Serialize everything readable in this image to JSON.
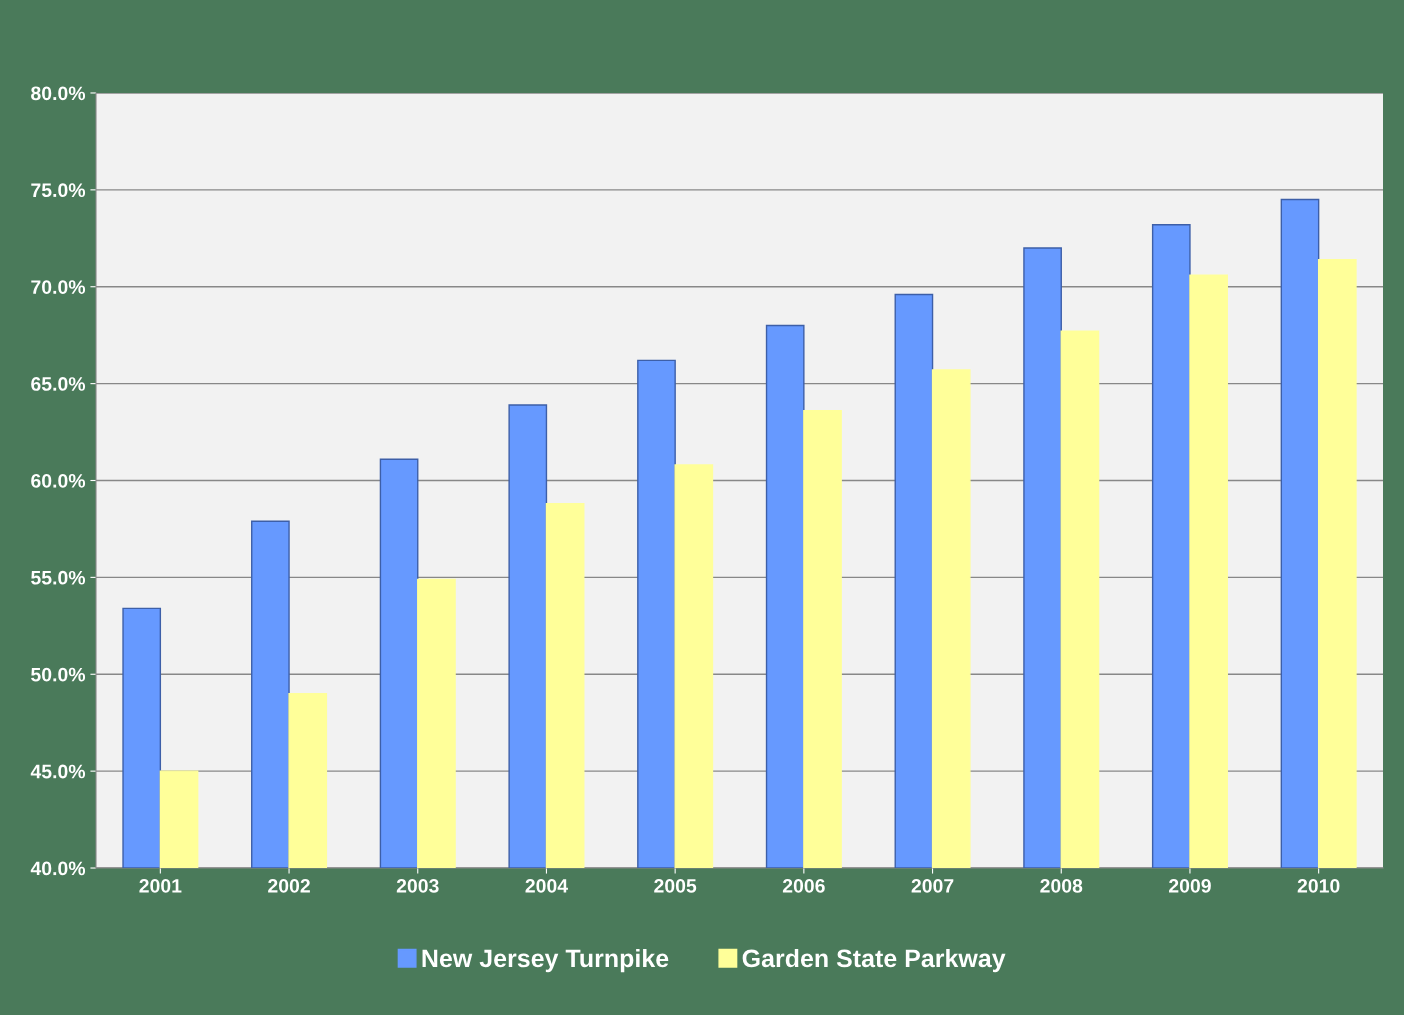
{
  "chart_data": {
    "type": "bar",
    "categories": [
      "2001",
      "2002",
      "2003",
      "2004",
      "2005",
      "2006",
      "2007",
      "2008",
      "2009",
      "2010"
    ],
    "series": [
      {
        "name": "New Jersey Turnpike",
        "color": "#6699ff",
        "values": [
          53.4,
          57.9,
          61.1,
          63.9,
          66.2,
          68.0,
          69.6,
          72.0,
          73.2,
          74.5
        ]
      },
      {
        "name": "Garden State Parkway",
        "color": "#ffff99",
        "values": [
          45.0,
          49.0,
          54.9,
          58.8,
          60.8,
          63.6,
          65.7,
          67.7,
          70.6,
          71.4
        ]
      }
    ],
    "ylim": [
      40,
      80
    ],
    "yticks": [
      {
        "value": 40,
        "label": "40.0%"
      },
      {
        "value": 45,
        "label": "45.0%"
      },
      {
        "value": 50,
        "label": "50.0%"
      },
      {
        "value": 55,
        "label": "55.0%"
      },
      {
        "value": 60,
        "label": "60.0%"
      },
      {
        "value": 65,
        "label": "65.0%"
      },
      {
        "value": 70,
        "label": "70.0%"
      },
      {
        "value": 75,
        "label": "75.0%"
      },
      {
        "value": 80,
        "label": "80.0%"
      }
    ],
    "grid": "y",
    "legend": "bottom"
  }
}
